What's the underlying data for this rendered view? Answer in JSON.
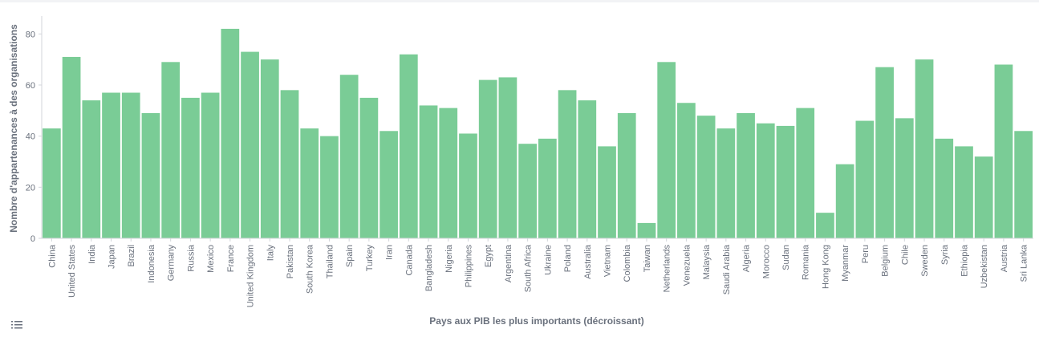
{
  "chart_data": {
    "type": "bar",
    "xlabel": "Pays aux PIB les plus importants (décroissant)",
    "ylabel": "Nombre d'appartenances à des organisations",
    "ylim": [
      0,
      87
    ],
    "yticks": [
      0,
      20,
      40,
      60,
      80
    ],
    "grid": false,
    "bar_color": "#7acc96",
    "categories": [
      "China",
      "United States",
      "India",
      "Japan",
      "Brazil",
      "Indonesia",
      "Germany",
      "Russia",
      "Mexico",
      "France",
      "United Kingdom",
      "Italy",
      "Pakistan",
      "South Korea",
      "Thailand",
      "Spain",
      "Turkey",
      "Iran",
      "Canada",
      "Bangladesh",
      "Nigeria",
      "Philippines",
      "Egypt",
      "Argentina",
      "South Africa",
      "Ukraine",
      "Poland",
      "Australia",
      "Vietnam",
      "Colombia",
      "Taiwan",
      "Netherlands",
      "Venezuela",
      "Malaysia",
      "Saudi Arabia",
      "Algeria",
      "Morocco",
      "Sudan",
      "Romania",
      "Hong Kong",
      "Myanmar",
      "Peru",
      "Belgium",
      "Chile",
      "Sweden",
      "Syria",
      "Ethiopia",
      "Uzbekistan",
      "Austria",
      "Sri Lanka"
    ],
    "values": [
      43,
      71,
      54,
      57,
      57,
      49,
      69,
      55,
      57,
      82,
      73,
      70,
      58,
      43,
      40,
      64,
      55,
      42,
      72,
      52,
      51,
      41,
      62,
      63,
      37,
      39,
      58,
      54,
      36,
      49,
      6,
      69,
      53,
      48,
      43,
      49,
      45,
      44,
      51,
      10,
      29,
      46,
      67,
      47,
      70,
      39,
      36,
      32,
      68,
      42
    ]
  },
  "legend_toggle_icon": "list-icon"
}
